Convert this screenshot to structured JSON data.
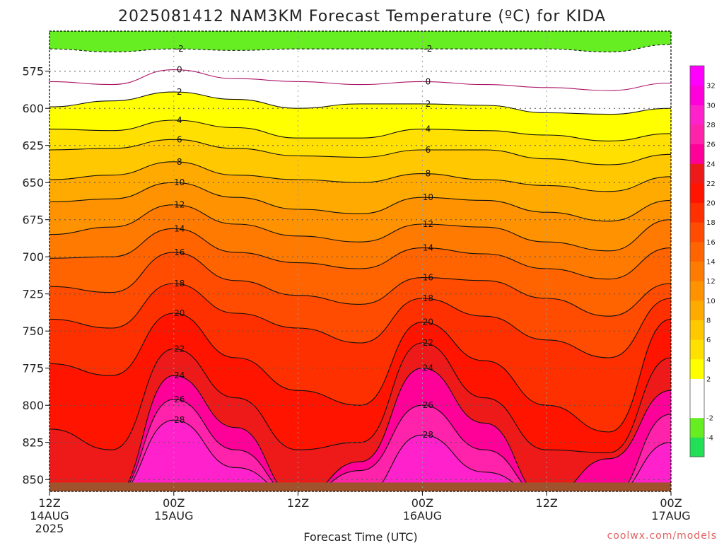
{
  "chart_data": {
    "type": "heatmap",
    "title": "2025081412 NAM3KM Forecast Temperature (ºC) for KIDA",
    "xlabel": "Forecast Time (UTC)",
    "ylabel": "",
    "y_axis": {
      "ticks": [
        575,
        600,
        625,
        650,
        675,
        700,
        725,
        750,
        775,
        800,
        825,
        850
      ],
      "lim": [
        548,
        858
      ],
      "units": "hPa",
      "inverted": true
    },
    "x_axis": {
      "ticks": [
        {
          "hour": 0,
          "lines": [
            "12Z",
            "14AUG",
            "2025"
          ]
        },
        {
          "hour": 12,
          "lines": [
            "00Z",
            "15AUG"
          ]
        },
        {
          "hour": 24,
          "lines": [
            "12Z"
          ]
        },
        {
          "hour": 36,
          "lines": [
            "00Z",
            "16AUG"
          ]
        },
        {
          "hour": 48,
          "lines": [
            "12Z"
          ]
        },
        {
          "hour": 60,
          "lines": [
            "00Z",
            "17AUG"
          ]
        }
      ],
      "lim": [
        0,
        60
      ]
    },
    "grid": true,
    "ground_level_hPa": 852,
    "colorbar": {
      "position": "right",
      "levels": [
        -6,
        -4,
        -2,
        0,
        2,
        4,
        6,
        8,
        10,
        12,
        14,
        16,
        18,
        20,
        22,
        24,
        26,
        28,
        30,
        32,
        34
      ],
      "colors": [
        "#22e055",
        "#66ee22",
        "#ffffff",
        "#ffffff",
        "#ffff00",
        "#ffe000",
        "#ffc800",
        "#ffaa00",
        "#ff9200",
        "#ff7a00",
        "#ff6400",
        "#ff4c00",
        "#ff3000",
        "#ff1400",
        "#ee1a1a",
        "#ff0099",
        "#ff22aa",
        "#ff22cc",
        "#ff00dd",
        "#ff00ff"
      ],
      "labels": [
        "-4",
        "-2",
        "2",
        "4",
        "6",
        "8",
        "10",
        "12",
        "14",
        "16",
        "18",
        "20",
        "22",
        "24",
        "26",
        "28",
        "30",
        "32"
      ]
    },
    "contour_levels": [
      -2,
      0,
      2,
      4,
      6,
      8,
      10,
      12,
      14,
      16,
      18,
      20,
      22,
      24,
      26,
      28
    ],
    "time_hours": [
      0,
      6,
      12,
      18,
      24,
      30,
      36,
      42,
      48,
      54,
      60
    ],
    "isotherm_pressure_hPa": [
      {
        "temp": -2,
        "p": [
          560,
          562,
          560,
          561,
          560,
          560,
          560,
          560,
          560,
          562,
          557
        ]
      },
      {
        "temp": 0,
        "p": [
          582,
          584,
          574,
          580,
          582,
          584,
          582,
          584,
          586,
          588,
          583
        ]
      },
      {
        "temp": 2,
        "p": [
          599,
          595,
          589,
          594,
          600,
          597,
          597,
          598,
          603,
          604,
          600
        ]
      },
      {
        "temp": 4,
        "p": [
          614,
          615,
          608,
          613,
          620,
          620,
          614,
          615,
          618,
          622,
          617
        ]
      },
      {
        "temp": 6,
        "p": [
          628,
          627,
          621,
          627,
          632,
          633,
          628,
          628,
          634,
          638,
          631
        ]
      },
      {
        "temp": 8,
        "p": [
          648,
          645,
          636,
          645,
          648,
          650,
          644,
          648,
          652,
          656,
          646
        ]
      },
      {
        "temp": 10,
        "p": [
          663,
          661,
          650,
          660,
          668,
          671,
          660,
          662,
          670,
          676,
          662
        ]
      },
      {
        "temp": 12,
        "p": [
          685,
          680,
          665,
          678,
          686,
          690,
          678,
          680,
          690,
          696,
          675
        ]
      },
      {
        "temp": 14,
        "p": [
          701,
          700,
          681,
          697,
          704,
          708,
          694,
          698,
          708,
          715,
          694
        ]
      },
      {
        "temp": 16,
        "p": [
          720,
          724,
          697,
          716,
          726,
          732,
          714,
          716,
          728,
          740,
          718
        ]
      },
      {
        "temp": 18,
        "p": [
          742,
          748,
          718,
          738,
          748,
          758,
          728,
          740,
          756,
          768,
          728
        ]
      },
      {
        "temp": 20,
        "p": [
          772,
          780,
          738,
          768,
          790,
          800,
          744,
          770,
          800,
          818,
          742
        ]
      },
      {
        "temp": 22,
        "p": [
          816,
          830,
          762,
          795,
          830,
          825,
          758,
          795,
          830,
          832,
          768
        ]
      },
      {
        "temp": 24,
        "p": [
          null,
          null,
          780,
          815,
          null,
          838,
          775,
          812,
          null,
          836,
          790
        ]
      },
      {
        "temp": 26,
        "p": [
          null,
          null,
          796,
          830,
          null,
          844,
          800,
          830,
          null,
          null,
          806
        ]
      },
      {
        "temp": 28,
        "p": [
          null,
          null,
          810,
          842,
          null,
          null,
          820,
          845,
          null,
          null,
          825
        ]
      }
    ]
  },
  "credit": "coolwx.com/models"
}
